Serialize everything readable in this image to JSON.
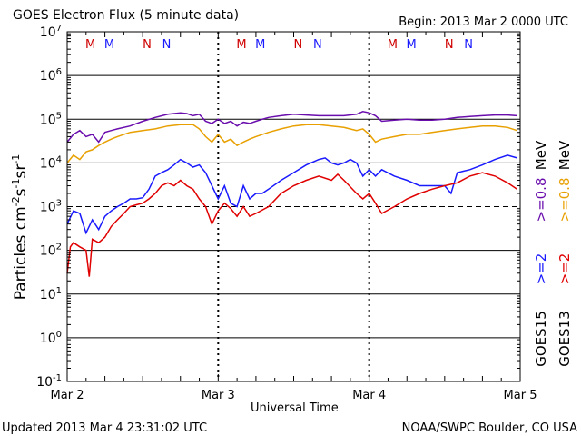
{
  "header": {
    "title": "GOES Electron Flux (5 minute data)",
    "begin": "Begin: 2013 Mar 2 0000 UTC"
  },
  "footer": {
    "updated": "Updated 2013 Mar  4 23:31:02 UTC",
    "credit": "NOAA/SWPC Boulder, CO USA"
  },
  "legend": {
    "goes15": "GOES15",
    "goes13": "GOES13",
    "ge2": ">=2",
    "ge08": ">=0.8",
    "mev": "MeV"
  },
  "colors": {
    "goes15_ge08": "#6a0dad",
    "goes13_ge08": "#e8a000",
    "goes15_ge2": "#1a1aff",
    "goes13_ge2": "#e00000",
    "marker_m": "#d00000",
    "marker_n_red": "#d00000",
    "marker_n_blue": "#1a1aff"
  },
  "chart_data": {
    "type": "line",
    "title": "GOES Electron Flux (5 minute data)",
    "xlabel": "Universal Time",
    "ylabel": "Particles cm-2s-1sr-1",
    "yscale": "log",
    "xlim": [
      0,
      72
    ],
    "ylim": [
      0.1,
      10000000
    ],
    "x_ticks": [
      "Mar 2",
      "Mar 3",
      "Mar 4",
      "Mar 5"
    ],
    "y_ticks": [
      {
        "base": "10",
        "exp": "-1"
      },
      {
        "base": "10",
        "exp": "0"
      },
      {
        "base": "10",
        "exp": "1"
      },
      {
        "base": "10",
        "exp": "2"
      },
      {
        "base": "10",
        "exp": "3"
      },
      {
        "base": "10",
        "exp": "4"
      },
      {
        "base": "10",
        "exp": "5"
      },
      {
        "base": "10",
        "exp": "6"
      },
      {
        "base": "10",
        "exp": "7"
      }
    ],
    "threshold": 1000,
    "markers": [
      {
        "x": 3.7,
        "label": "M",
        "sat": "goes13"
      },
      {
        "x": 6.7,
        "label": "M",
        "sat": "goes15"
      },
      {
        "x": 12.7,
        "label": "N",
        "sat": "goes13"
      },
      {
        "x": 15.8,
        "label": "N",
        "sat": "goes15"
      },
      {
        "x": 27.7,
        "label": "M",
        "sat": "goes13"
      },
      {
        "x": 30.7,
        "label": "M",
        "sat": "goes15"
      },
      {
        "x": 36.7,
        "label": "N",
        "sat": "goes13"
      },
      {
        "x": 39.8,
        "label": "N",
        "sat": "goes15"
      },
      {
        "x": 51.7,
        "label": "M",
        "sat": "goes13"
      },
      {
        "x": 54.7,
        "label": "M",
        "sat": "goes15"
      },
      {
        "x": 60.7,
        "label": "N",
        "sat": "goes13"
      },
      {
        "x": 63.8,
        "label": "N",
        "sat": "goes15"
      }
    ],
    "series": [
      {
        "name": "GOES15 >=0.8 MeV",
        "x": [
          0,
          1,
          2,
          3,
          4,
          5,
          6,
          7,
          8,
          10,
          12,
          14,
          16,
          18,
          19,
          20,
          21,
          22,
          23,
          24,
          25,
          26,
          27,
          28,
          29,
          30,
          31,
          32,
          34,
          36,
          38,
          40,
          42,
          44,
          46,
          47,
          48,
          49,
          50,
          52,
          54,
          56,
          58,
          60,
          62,
          64,
          66,
          68,
          70,
          71.5
        ],
        "y": [
          30000,
          45000,
          55000,
          40000,
          45000,
          30000,
          50000,
          55000,
          60000,
          70000,
          90000,
          110000,
          130000,
          140000,
          135000,
          120000,
          130000,
          90000,
          80000,
          100000,
          80000,
          90000,
          70000,
          85000,
          80000,
          90000,
          100000,
          110000,
          120000,
          130000,
          125000,
          120000,
          120000,
          120000,
          130000,
          150000,
          140000,
          120000,
          90000,
          95000,
          100000,
          95000,
          95000,
          100000,
          110000,
          115000,
          120000,
          125000,
          125000,
          120000
        ]
      },
      {
        "name": "GOES13 >=0.8 MeV",
        "x": [
          0,
          1,
          2,
          3,
          4,
          5,
          6,
          7,
          8,
          10,
          12,
          14,
          16,
          18,
          20,
          21,
          22,
          23,
          24,
          25,
          26,
          27,
          28,
          29,
          30,
          32,
          34,
          36,
          38,
          40,
          42,
          44,
          46,
          47,
          48,
          49,
          50,
          52,
          54,
          56,
          58,
          60,
          62,
          64,
          66,
          68,
          70,
          71.5
        ],
        "y": [
          10000,
          15000,
          12000,
          18000,
          20000,
          25000,
          30000,
          35000,
          40000,
          50000,
          55000,
          60000,
          70000,
          75000,
          75000,
          60000,
          40000,
          30000,
          45000,
          30000,
          35000,
          25000,
          30000,
          35000,
          40000,
          50000,
          60000,
          70000,
          75000,
          75000,
          70000,
          65000,
          55000,
          60000,
          45000,
          30000,
          35000,
          40000,
          45000,
          45000,
          50000,
          55000,
          60000,
          65000,
          70000,
          70000,
          65000,
          55000
        ]
      },
      {
        "name": "GOES15 >=2 MeV",
        "x": [
          0,
          1,
          2,
          3,
          4,
          5,
          6,
          7,
          8,
          9,
          10,
          11,
          12,
          13,
          14,
          15,
          16,
          17,
          18,
          19,
          20,
          21,
          22,
          23,
          24,
          25,
          26,
          27,
          28,
          29,
          30,
          31,
          32,
          34,
          36,
          38,
          40,
          41,
          42,
          43,
          44,
          45,
          46,
          47,
          48,
          49,
          50,
          52,
          54,
          56,
          58,
          60,
          61,
          62,
          64,
          66,
          68,
          70,
          71.5
        ],
        "y": [
          400,
          800,
          700,
          250,
          500,
          300,
          600,
          800,
          1000,
          1200,
          1500,
          1500,
          1600,
          2500,
          5000,
          6000,
          7000,
          9000,
          12000,
          10000,
          8000,
          9000,
          6000,
          3000,
          1500,
          3000,
          1200,
          1000,
          3000,
          1500,
          2000,
          2000,
          2500,
          4000,
          6000,
          9000,
          12000,
          13000,
          10000,
          9000,
          10000,
          12000,
          10000,
          5000,
          7000,
          5000,
          7000,
          5000,
          4000,
          3000,
          3000,
          3000,
          2000,
          6000,
          7000,
          9000,
          12000,
          15000,
          13000
        ]
      },
      {
        "name": "GOES13 >=2 MeV",
        "x": [
          0,
          0.5,
          1,
          2,
          3,
          3.5,
          4,
          5,
          6,
          7,
          8,
          9,
          10,
          11,
          12,
          13,
          14,
          15,
          16,
          17,
          18,
          19,
          20,
          21,
          22,
          23,
          24,
          25,
          26,
          27,
          28,
          29,
          30,
          32,
          34,
          36,
          38,
          40,
          42,
          43,
          44,
          46,
          47,
          48,
          49,
          50,
          52,
          54,
          56,
          58,
          60,
          62,
          64,
          66,
          68,
          70,
          71.5
        ],
        "y": [
          30,
          120,
          150,
          120,
          100,
          25,
          180,
          150,
          200,
          350,
          500,
          700,
          1000,
          1100,
          1200,
          1500,
          2000,
          3000,
          3500,
          3000,
          4000,
          3000,
          2500,
          1500,
          1000,
          400,
          800,
          1200,
          900,
          600,
          1000,
          600,
          700,
          1000,
          2000,
          3000,
          4000,
          5000,
          4000,
          5500,
          4000,
          2000,
          1500,
          2000,
          1200,
          700,
          1000,
          1500,
          2000,
          2500,
          3000,
          3500,
          5000,
          6000,
          5000,
          3500,
          2500
        ]
      }
    ]
  }
}
